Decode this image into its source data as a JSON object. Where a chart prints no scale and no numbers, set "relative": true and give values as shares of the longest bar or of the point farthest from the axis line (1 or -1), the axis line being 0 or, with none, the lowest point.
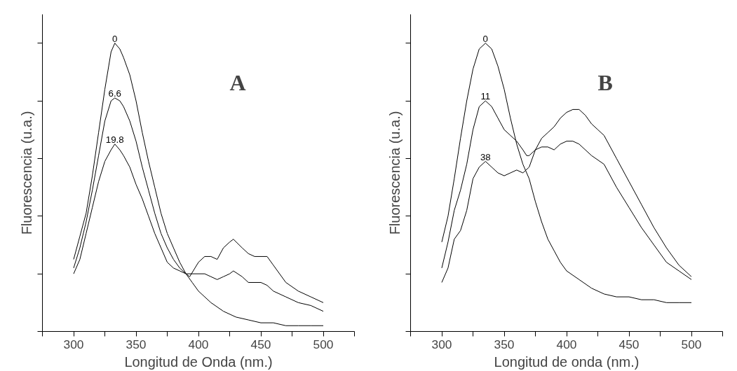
{
  "chart_data": [
    {
      "type": "line",
      "relative": true,
      "xlabel": "Longitud de Onda (nm.)",
      "ylabel": "Fluorescencia (u.a.)",
      "annotations": [
        "A"
      ],
      "xlim": [
        275,
        525
      ],
      "xticks": [
        {
          "value": 275,
          "label": null
        },
        300,
        {
          "value": 325,
          "label": null
        },
        350,
        {
          "value": 375,
          "label": null
        },
        400,
        {
          "value": 425,
          "label": null
        },
        450,
        {
          "value": 475,
          "label": null
        },
        500,
        {
          "value": 525,
          "label": null
        }
      ],
      "tick_labels": "x",
      "grid": false,
      "legend": false,
      "line_style": "solid",
      "marker": "none",
      "x": [
        300,
        305,
        310,
        315,
        320,
        325,
        330,
        333,
        337,
        340,
        345,
        350,
        355,
        360,
        365,
        370,
        375,
        380,
        385,
        390,
        395,
        400,
        410,
        420,
        430,
        440,
        450,
        460,
        470,
        480,
        490,
        500
      ],
      "series": [
        {
          "name": "0",
          "color": "#000000",
          "values": [
            0.25,
            0.33,
            0.41,
            0.54,
            0.69,
            0.84,
            0.97,
            1.0,
            0.98,
            0.95,
            0.89,
            0.8,
            0.69,
            0.59,
            0.5,
            0.41,
            0.34,
            0.29,
            0.24,
            0.2,
            0.17,
            0.14,
            0.1,
            0.07,
            0.05,
            0.04,
            0.03,
            0.03,
            0.02,
            0.02,
            0.02,
            0.02
          ]
        },
        {
          "name": "6.6",
          "color": "#000000",
          "x": [
            300,
            305,
            310,
            315,
            320,
            325,
            330,
            333,
            337,
            340,
            345,
            350,
            355,
            360,
            365,
            370,
            375,
            380,
            385,
            390,
            395,
            400,
            405,
            410,
            415,
            420,
            425,
            428,
            435,
            440,
            450,
            455,
            460,
            470,
            480,
            490,
            500
          ],
          "values": [
            0.22,
            0.29,
            0.38,
            0.49,
            0.61,
            0.73,
            0.8,
            0.81,
            0.8,
            0.78,
            0.73,
            0.66,
            0.57,
            0.49,
            0.41,
            0.34,
            0.29,
            0.25,
            0.22,
            0.2,
            0.2,
            0.2,
            0.2,
            0.19,
            0.18,
            0.19,
            0.2,
            0.21,
            0.19,
            0.17,
            0.17,
            0.16,
            0.14,
            0.12,
            0.1,
            0.09,
            0.07
          ]
        },
        {
          "name": "19.8",
          "color": "#000000",
          "x": [
            300,
            305,
            310,
            315,
            320,
            325,
            330,
            333,
            337,
            340,
            345,
            350,
            355,
            360,
            365,
            370,
            375,
            380,
            385,
            390,
            393,
            400,
            405,
            410,
            415,
            420,
            425,
            428,
            435,
            440,
            445,
            450,
            455,
            460,
            470,
            480,
            490,
            500
          ],
          "values": [
            0.2,
            0.25,
            0.34,
            0.43,
            0.52,
            0.59,
            0.63,
            0.65,
            0.63,
            0.61,
            0.57,
            0.51,
            0.46,
            0.4,
            0.34,
            0.29,
            0.24,
            0.22,
            0.21,
            0.2,
            0.19,
            0.24,
            0.26,
            0.26,
            0.25,
            0.29,
            0.31,
            0.32,
            0.29,
            0.27,
            0.26,
            0.26,
            0.26,
            0.23,
            0.17,
            0.14,
            0.12,
            0.1
          ]
        }
      ]
    },
    {
      "type": "line",
      "relative": true,
      "xlabel": "Longitud de onda (nm.)",
      "ylabel": "Fluorescencia (u.a.)",
      "annotations": [
        "B"
      ],
      "xlim": [
        275,
        525
      ],
      "xticks": [
        {
          "value": 275,
          "label": null
        },
        300,
        {
          "value": 325,
          "label": null
        },
        350,
        {
          "value": 375,
          "label": null
        },
        400,
        {
          "value": 425,
          "label": null
        },
        450,
        {
          "value": 475,
          "label": null
        },
        500,
        {
          "value": 525,
          "label": null
        }
      ],
      "tick_labels": "x",
      "grid": false,
      "legend": false,
      "line_style": "solid",
      "marker": "none",
      "x": [
        300,
        305,
        310,
        315,
        320,
        325,
        330,
        335,
        340,
        345,
        350,
        355,
        360,
        365,
        370,
        375,
        380,
        385,
        390,
        395,
        400,
        410,
        420,
        430,
        440,
        450,
        460,
        470,
        480,
        490,
        500
      ],
      "series": [
        {
          "name": "0",
          "color": "#000000",
          "values": [
            0.31,
            0.4,
            0.53,
            0.67,
            0.8,
            0.91,
            0.98,
            1.0,
            0.98,
            0.92,
            0.84,
            0.74,
            0.65,
            0.58,
            0.53,
            0.45,
            0.38,
            0.32,
            0.28,
            0.24,
            0.21,
            0.18,
            0.15,
            0.13,
            0.12,
            0.12,
            0.11,
            0.11,
            0.1,
            0.1,
            0.1
          ]
        },
        {
          "name": "11",
          "color": "#000000",
          "x": [
            300,
            305,
            310,
            315,
            320,
            325,
            330,
            335,
            340,
            345,
            350,
            355,
            360,
            365,
            368,
            370,
            375,
            380,
            385,
            390,
            395,
            400,
            405,
            410,
            420,
            430,
            440,
            450,
            460,
            470,
            480,
            490,
            500
          ],
          "values": [
            0.22,
            0.31,
            0.42,
            0.49,
            0.58,
            0.7,
            0.78,
            0.8,
            0.78,
            0.74,
            0.7,
            0.68,
            0.66,
            0.63,
            0.61,
            0.61,
            0.63,
            0.64,
            0.64,
            0.63,
            0.65,
            0.66,
            0.66,
            0.65,
            0.61,
            0.58,
            0.5,
            0.43,
            0.36,
            0.3,
            0.24,
            0.21,
            0.18
          ]
        },
        {
          "name": "38",
          "color": "#000000",
          "x": [
            300,
            305,
            310,
            315,
            320,
            325,
            330,
            335,
            340,
            345,
            350,
            355,
            360,
            365,
            370,
            375,
            380,
            385,
            390,
            395,
            400,
            405,
            410,
            415,
            420,
            425,
            430,
            440,
            450,
            460,
            470,
            480,
            490,
            500
          ],
          "values": [
            0.17,
            0.22,
            0.32,
            0.35,
            0.42,
            0.53,
            0.57,
            0.59,
            0.57,
            0.55,
            0.54,
            0.55,
            0.56,
            0.55,
            0.57,
            0.63,
            0.67,
            0.69,
            0.71,
            0.74,
            0.76,
            0.77,
            0.77,
            0.75,
            0.72,
            0.7,
            0.68,
            0.6,
            0.52,
            0.44,
            0.36,
            0.29,
            0.23,
            0.19
          ]
        }
      ]
    }
  ]
}
